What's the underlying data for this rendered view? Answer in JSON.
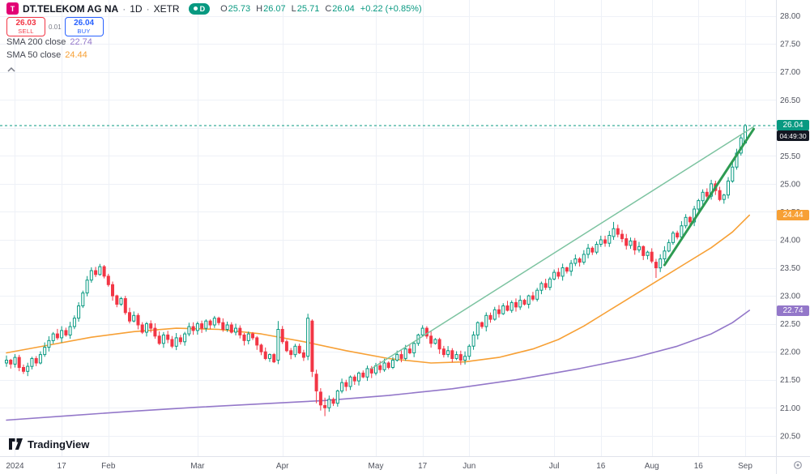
{
  "header": {
    "logo_letter": "T",
    "symbol": "DT.TELEKOM AG NA",
    "separator": "·",
    "interval": "1D",
    "exchange": "XETR",
    "interval_badge": "D",
    "ohlc": {
      "o_label": "O",
      "o": "25.73",
      "h_label": "H",
      "h": "26.07",
      "l_label": "L",
      "l": "25.71",
      "c_label": "C",
      "c": "26.04",
      "change": "+0.22 (+0.85%)"
    }
  },
  "trade": {
    "sell_price": "26.03",
    "sell_label": "SELL",
    "spread": "0.01",
    "buy_price": "26.04",
    "buy_label": "BUY"
  },
  "legend": {
    "sma200": {
      "title": "SMA 200 close",
      "value": "22.74"
    },
    "sma50": {
      "title": "SMA 50 close",
      "value": "24.44"
    }
  },
  "price_axis": {
    "current_value": "26.04",
    "countdown": "04:49:30",
    "sma50_value": "24.44",
    "sma200_value": "22.74"
  },
  "footer": {
    "logo_text": "TradingView"
  },
  "colors": {
    "up": "#089981",
    "down": "#f23645",
    "sell": "#f23645",
    "buy": "#2962ff",
    "sma50": "#f7a035",
    "sma200": "#9377c9",
    "grid": "#eef1f7",
    "axis_text": "#50535e",
    "text": "#131722",
    "muted": "#787b86",
    "logo_bg": "#e20074",
    "countdown_bg": "#131722"
  },
  "chart_data": {
    "type": "candlestick",
    "symbol": "DT.TELEKOM AG NA",
    "interval": "1D",
    "exchange": "XETR",
    "title": "DT.TELEKOM AG NA · 1D · XETR",
    "grid": true,
    "price_range": [
      20.5,
      28.0
    ],
    "current_price": 26.04,
    "ohlc_last": {
      "open": 25.73,
      "high": 26.07,
      "low": 25.71,
      "close": 26.04,
      "change_abs": 0.22,
      "change_pct": 0.85
    },
    "price_axis_ticks": [
      "28.00",
      "27.50",
      "27.00",
      "26.50",
      "26.00",
      "25.50",
      "25.00",
      "24.50",
      "24.00",
      "23.50",
      "23.00",
      "22.50",
      "22.00",
      "21.50",
      "21.00",
      "20.50"
    ],
    "time_ticks": [
      {
        "label": "2024",
        "day": 2
      },
      {
        "label": "17",
        "day": 13
      },
      {
        "label": "Feb",
        "day": 24
      },
      {
        "label": "Mar",
        "day": 45
      },
      {
        "label": "Apr",
        "day": 65
      },
      {
        "label": "May",
        "day": 87
      },
      {
        "label": "17",
        "day": 98
      },
      {
        "label": "Jun",
        "day": 109
      },
      {
        "label": "Jul",
        "day": 129
      },
      {
        "label": "16",
        "day": 140
      },
      {
        "label": "Aug",
        "day": 152
      },
      {
        "label": "16",
        "day": 163
      },
      {
        "label": "Sep",
        "day": 174
      }
    ],
    "first_open": 21.8,
    "closes": [
      21.85,
      21.78,
      21.9,
      21.72,
      21.65,
      21.74,
      21.88,
      21.8,
      21.95,
      22.08,
      22.2,
      22.32,
      22.25,
      22.38,
      22.3,
      22.45,
      22.6,
      22.82,
      23.05,
      23.28,
      23.45,
      23.38,
      23.52,
      23.35,
      23.2,
      23.0,
      22.85,
      22.95,
      22.7,
      22.55,
      22.65,
      22.48,
      22.35,
      22.5,
      22.42,
      22.28,
      22.15,
      22.3,
      22.22,
      22.1,
      22.25,
      22.18,
      22.32,
      22.45,
      22.38,
      22.5,
      22.42,
      22.55,
      22.48,
      22.6,
      22.52,
      22.4,
      22.48,
      22.35,
      22.42,
      22.3,
      22.2,
      22.32,
      22.25,
      22.12,
      22.0,
      21.88,
      21.95,
      21.82,
      22.4,
      22.18,
      22.02,
      21.95,
      22.1,
      21.98,
      21.9,
      22.6,
      21.65,
      21.3,
      21.05,
      21.0,
      21.15,
      21.08,
      21.3,
      21.45,
      21.38,
      21.55,
      21.48,
      21.62,
      21.55,
      21.7,
      21.62,
      21.75,
      21.68,
      21.8,
      21.72,
      21.85,
      21.95,
      21.88,
      22.05,
      21.98,
      22.15,
      22.3,
      22.42,
      22.28,
      22.15,
      22.22,
      22.05,
      21.95,
      22.02,
      21.88,
      21.95,
      21.85,
      21.92,
      22.1,
      22.3,
      22.52,
      22.45,
      22.65,
      22.58,
      22.75,
      22.68,
      22.82,
      22.74,
      22.88,
      22.8,
      22.92,
      22.85,
      23.0,
      22.94,
      23.1,
      23.22,
      23.15,
      23.3,
      23.42,
      23.35,
      23.5,
      23.44,
      23.58,
      23.66,
      23.6,
      23.74,
      23.85,
      23.78,
      23.92,
      24.0,
      23.94,
      24.08,
      24.2,
      24.1,
      24.02,
      23.9,
      23.98,
      23.82,
      23.88,
      23.72,
      23.78,
      23.62,
      23.5,
      23.66,
      23.8,
      23.95,
      24.12,
      24.05,
      24.25,
      24.4,
      24.32,
      24.55,
      24.7,
      24.85,
      24.78,
      25.0,
      24.88,
      24.72,
      24.8,
      25.05,
      25.3,
      25.55,
      25.82,
      26.04
    ],
    "special_candles": {
      "64": [
        21.85,
        22.55,
        21.78,
        22.4
      ],
      "71": [
        21.92,
        22.68,
        21.85,
        22.6
      ],
      "72": [
        22.55,
        22.58,
        21.55,
        21.65
      ],
      "73": [
        21.6,
        21.68,
        21.08,
        21.3
      ],
      "74": [
        21.28,
        21.35,
        20.95,
        21.05
      ],
      "75": [
        21.04,
        21.18,
        20.85,
        21.0
      ],
      "143": [
        24.06,
        24.32,
        24.0,
        24.2
      ],
      "153": [
        23.6,
        23.66,
        23.32,
        23.5
      ],
      "174": [
        25.73,
        26.07,
        25.71,
        26.04
      ]
    },
    "overlays": {
      "sma200": {
        "name": "SMA 200",
        "color": "#9377c9",
        "last": 22.74,
        "points": [
          [
            0,
            20.78
          ],
          [
            15,
            20.86
          ],
          [
            30,
            20.94
          ],
          [
            45,
            21.01
          ],
          [
            60,
            21.07
          ],
          [
            75,
            21.13
          ],
          [
            90,
            21.22
          ],
          [
            105,
            21.34
          ],
          [
            120,
            21.5
          ],
          [
            135,
            21.7
          ],
          [
            148,
            21.9
          ],
          [
            158,
            22.1
          ],
          [
            166,
            22.32
          ],
          [
            171,
            22.52
          ],
          [
            175,
            22.74
          ]
        ]
      },
      "sma50": {
        "name": "SMA 50",
        "color": "#f7a035",
        "last": 24.44,
        "points": [
          [
            0,
            21.98
          ],
          [
            10,
            22.12
          ],
          [
            20,
            22.26
          ],
          [
            30,
            22.36
          ],
          [
            40,
            22.42
          ],
          [
            50,
            22.4
          ],
          [
            60,
            22.32
          ],
          [
            70,
            22.18
          ],
          [
            80,
            22.02
          ],
          [
            90,
            21.88
          ],
          [
            100,
            21.8
          ],
          [
            108,
            21.82
          ],
          [
            116,
            21.9
          ],
          [
            124,
            22.05
          ],
          [
            130,
            22.22
          ],
          [
            136,
            22.46
          ],
          [
            142,
            22.74
          ],
          [
            148,
            23.02
          ],
          [
            154,
            23.3
          ],
          [
            160,
            23.58
          ],
          [
            166,
            23.86
          ],
          [
            171,
            24.14
          ],
          [
            175,
            24.44
          ]
        ]
      }
    },
    "trendlines": [
      {
        "name": "long-uptrend",
        "from": [
          86,
          21.7
        ],
        "to": [
          176,
          26.02
        ],
        "color": "#7cc3a0",
        "width": 1.5
      },
      {
        "name": "steep-uptrend",
        "from": [
          155,
          23.55
        ],
        "to": [
          176,
          25.98
        ],
        "color": "#2e9b52",
        "width": 3
      }
    ]
  }
}
